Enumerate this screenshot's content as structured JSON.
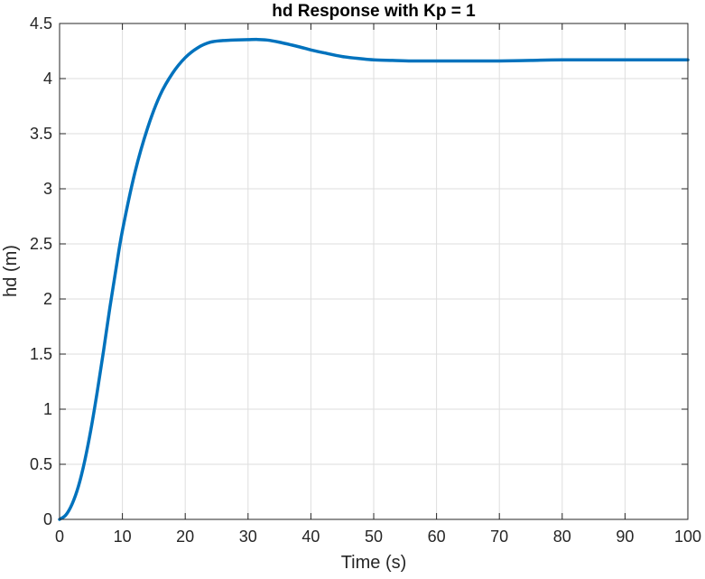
{
  "chart_data": {
    "type": "line",
    "title": "hd Response with Kp = 1",
    "xlabel": "Time (s)",
    "ylabel": "hd (m)",
    "xlim": [
      0,
      100
    ],
    "ylim": [
      0,
      4.5
    ],
    "xticks": [
      0,
      10,
      20,
      30,
      40,
      50,
      60,
      70,
      80,
      90,
      100
    ],
    "yticks": [
      0,
      0.5,
      1,
      1.5,
      2,
      2.5,
      3,
      3.5,
      4,
      4.5
    ],
    "xtick_labels": [
      "0",
      "10",
      "20",
      "30",
      "40",
      "50",
      "60",
      "70",
      "80",
      "90",
      "100"
    ],
    "ytick_labels": [
      "0",
      "0.5",
      "1",
      "1.5",
      "2",
      "2.5",
      "3",
      "3.5",
      "4",
      "4.5"
    ],
    "grid": true,
    "line_color": "#0072BD",
    "series": [
      {
        "x": [
          0,
          1,
          2,
          3,
          4,
          5,
          6,
          7,
          8,
          9,
          10,
          12,
          14,
          16,
          18,
          20,
          22,
          24,
          26,
          28,
          30,
          31.5,
          33,
          35,
          38,
          40,
          42,
          45,
          48,
          50,
          53,
          56,
          60,
          65,
          70,
          75,
          80,
          90,
          100
        ],
        "y": [
          0,
          0.04,
          0.14,
          0.3,
          0.53,
          0.82,
          1.16,
          1.53,
          1.92,
          2.28,
          2.62,
          3.15,
          3.55,
          3.85,
          4.05,
          4.19,
          4.28,
          4.33,
          4.345,
          4.35,
          4.353,
          4.355,
          4.35,
          4.33,
          4.29,
          4.26,
          4.235,
          4.2,
          4.18,
          4.17,
          4.165,
          4.16,
          4.16,
          4.16,
          4.16,
          4.165,
          4.17,
          4.17,
          4.17
        ]
      }
    ]
  }
}
